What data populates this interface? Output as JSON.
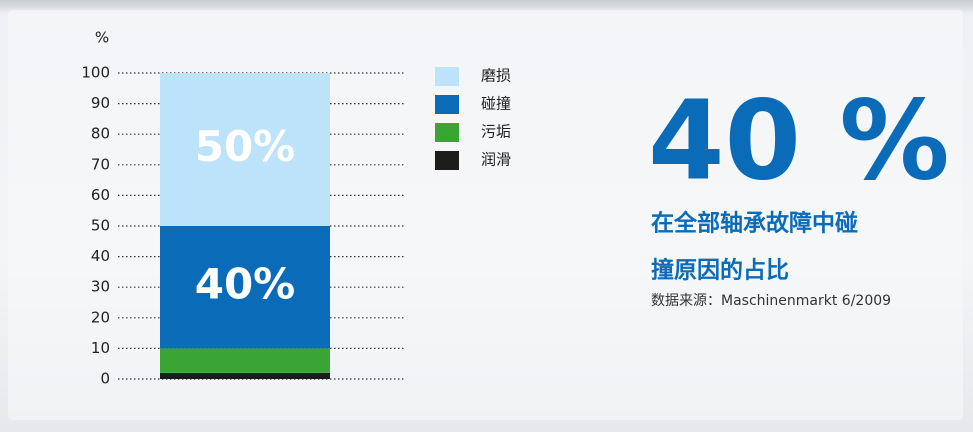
{
  "chart_data": {
    "type": "stacked_bar",
    "y_label": "%",
    "headline": "40 %",
    "subtitle_lines": [
      "在全部轴承故障中碰",
      "撞原因的占比"
    ],
    "source": "数据来源：Maschinenmarkt 6/2009",
    "ylim": [
      0,
      100
    ],
    "yticks": [
      0,
      10,
      20,
      30,
      40,
      50,
      60,
      70,
      80,
      90,
      100
    ],
    "grid": true,
    "series": [
      {
        "name": "磨损",
        "color": "#bce3f9",
        "values": [
          50
        ],
        "value_labels": [
          "50%"
        ]
      },
      {
        "name": "碰撞",
        "color": "#0a6cb9",
        "values": [
          40
        ],
        "value_labels": [
          "40%"
        ]
      },
      {
        "name": "污垢",
        "color": "#3aa535",
        "values": [
          8
        ]
      },
      {
        "name": "润滑",
        "color": "#1d1d1b",
        "values": [
          2
        ]
      }
    ]
  }
}
